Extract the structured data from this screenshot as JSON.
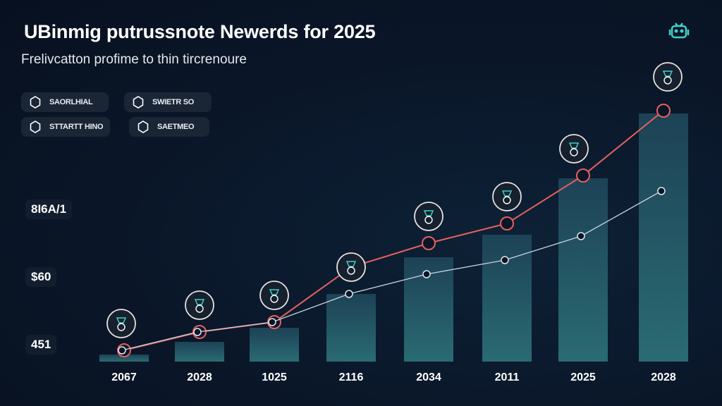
{
  "header": {
    "title": "UBinmig putrussnote Newerds for 2025",
    "subtitle": "Frelivcatton profime to thin tircrenoure",
    "logo_icon": "robot-icon"
  },
  "legend": [
    {
      "label": "SAORLHIAL",
      "icon": "hexagon-icon"
    },
    {
      "label": "SWIETR SO",
      "icon": "hexagon-icon"
    },
    {
      "label": "STTARTT HINO",
      "icon": "hexagon-icon"
    },
    {
      "label": "SAETMEO",
      "icon": "hexagon-icon"
    }
  ],
  "chart_data": {
    "type": "bar",
    "title": "UBinmig putrussnote Newerds for 2025",
    "subtitle": "Frelivcatton profime to thin tircrenoure",
    "categories": [
      "2067",
      "2028",
      "1025",
      "2116",
      "2034",
      "2011",
      "2025",
      "2028"
    ],
    "y_tick_labels": [
      "8I6A/1",
      "$60",
      "451"
    ],
    "ylim": [
      0,
      100
    ],
    "grid": false,
    "bars": {
      "values": [
        2.5,
        7,
        12,
        24,
        37,
        45,
        65,
        88
      ],
      "color": "#2a6b73"
    },
    "series": [
      {
        "type": "line",
        "values": [
          4,
          10.5,
          14,
          33.5,
          42,
          49,
          66,
          89
        ],
        "color": "#e4605e"
      },
      {
        "type": "line",
        "values": [
          4,
          10.5,
          14,
          24,
          31,
          36,
          44.5,
          60.5
        ],
        "color": "#c9d3dc"
      }
    ],
    "marker_icons": [
      "key-icon",
      "wallet-icon",
      "cloud-icon",
      "plant-icon",
      "hand-coin-icon",
      "tree-icon",
      "seedling-icon",
      "leaf-icon"
    ],
    "colors": {
      "background": "#0a1628",
      "accent": "#3fd0c9"
    }
  }
}
